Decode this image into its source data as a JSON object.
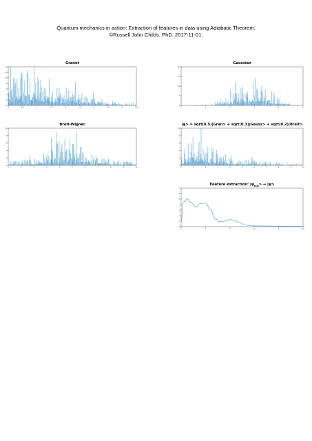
{
  "header": {
    "line1": "Quantum mechanics in action: Extraction of features in data using Adiabatic Theorem.",
    "line2": "©Russell John Childs, PhD, 2017-11-01."
  },
  "colors": {
    "bar": "#6baed6",
    "dense": "#3182bd",
    "line": "#6baed6",
    "axis": "#333333"
  },
  "chart_data": [
    {
      "type": "bar",
      "title": "Granet",
      "xlim": [
        0,
        4.5
      ],
      "ylim": [
        0,
        15
      ],
      "xticks": [
        "0",
        "0.5",
        "1",
        "1.5",
        "2",
        "2.5",
        "3",
        "3.5",
        "4",
        "4.5"
      ],
      "yticks": [
        "0",
        "2",
        "4",
        "6",
        "8",
        "10",
        "12",
        "14"
      ],
      "envelope": [
        [
          0,
          7
        ],
        [
          0.3,
          11
        ],
        [
          0.5,
          12
        ],
        [
          1,
          10
        ],
        [
          1.5,
          8
        ],
        [
          2,
          5.5
        ],
        [
          2.5,
          4
        ],
        [
          3,
          2.5
        ],
        [
          3.5,
          1.5
        ],
        [
          4,
          1
        ],
        [
          4.5,
          0.5
        ]
      ]
    },
    {
      "type": "bar",
      "title": "Gaussian",
      "xlim": [
        0,
        5
      ],
      "ylim": [
        0,
        20
      ],
      "xticks": [
        "0",
        "1",
        "2",
        "3",
        "4",
        "5"
      ],
      "yticks": [
        "0",
        "5",
        "10",
        "15",
        "20"
      ],
      "envelope": [
        [
          0,
          0
        ],
        [
          1,
          0.3
        ],
        [
          1.5,
          1
        ],
        [
          2,
          4
        ],
        [
          2.5,
          9
        ],
        [
          3,
          12
        ],
        [
          3.5,
          9
        ],
        [
          4,
          3
        ],
        [
          4.5,
          0.5
        ],
        [
          5,
          0
        ]
      ]
    },
    {
      "type": "bar",
      "title": "Breit-Wigner",
      "xlim": [
        0,
        10
      ],
      "ylim": [
        0,
        10
      ],
      "xticks": [
        "0",
        "1",
        "2",
        "3",
        "4",
        "5",
        "6",
        "7",
        "8",
        "9",
        "10"
      ],
      "yticks": [
        "0",
        "2",
        "4",
        "6",
        "8",
        "10"
      ],
      "envelope": [
        [
          0,
          1
        ],
        [
          2,
          1.5
        ],
        [
          3,
          3
        ],
        [
          4,
          5
        ],
        [
          4.6,
          5.5
        ],
        [
          5.5,
          4.5
        ],
        [
          6.5,
          2.5
        ],
        [
          7.5,
          1.5
        ],
        [
          9,
          1
        ],
        [
          10,
          0.8
        ]
      ]
    },
    {
      "type": "bar",
      "title": "|ψ> = sqrt(0.5)|Gran> + sqrt(0.3)|Gauss> + sqrt(0.2)|Breit>",
      "xlim": [
        0,
        10
      ],
      "ylim": [
        0,
        10
      ],
      "xticks": [
        "0",
        "1",
        "2",
        "3",
        "4",
        "5",
        "6",
        "7",
        "8",
        "9",
        "10"
      ],
      "yticks": [
        "0",
        "2",
        "4",
        "6",
        "8",
        "10"
      ],
      "envelope": [
        [
          0,
          2
        ],
        [
          0.5,
          5
        ],
        [
          1,
          6
        ],
        [
          1.5,
          5.5
        ],
        [
          2,
          5
        ],
        [
          3,
          3
        ],
        [
          4,
          2
        ],
        [
          5,
          1.5
        ],
        [
          6,
          1
        ],
        [
          8,
          0.6
        ],
        [
          10,
          0.3
        ]
      ]
    },
    {
      "type": "line",
      "title_main": "Feature extraction: |ψ",
      "title_sub": "init",
      "title_end": "> → |ψ>",
      "xlim": [
        0,
        10
      ],
      "ylim": [
        0,
        7
      ],
      "xticks": [
        "0",
        "2",
        "4",
        "6",
        "8",
        "10"
      ],
      "yticks": [
        "0",
        "1",
        "2",
        "3",
        "4",
        "5",
        "6",
        "7"
      ],
      "x": [
        0,
        0.2,
        0.5,
        0.8,
        1.2,
        1.6,
        2.0,
        2.4,
        2.8,
        3.2,
        3.6,
        4.0,
        4.4,
        4.8,
        5.2,
        5.6,
        6.0,
        7.0,
        8.0,
        9.0,
        10.0
      ],
      "y": [
        1.0,
        4.5,
        5.0,
        4.4,
        3.6,
        4.2,
        4.3,
        3.1,
        1.4,
        0.9,
        1.0,
        1.3,
        1.1,
        0.7,
        0.3,
        0.2,
        0.15,
        0.12,
        0.1,
        0.05,
        0.05
      ]
    }
  ]
}
